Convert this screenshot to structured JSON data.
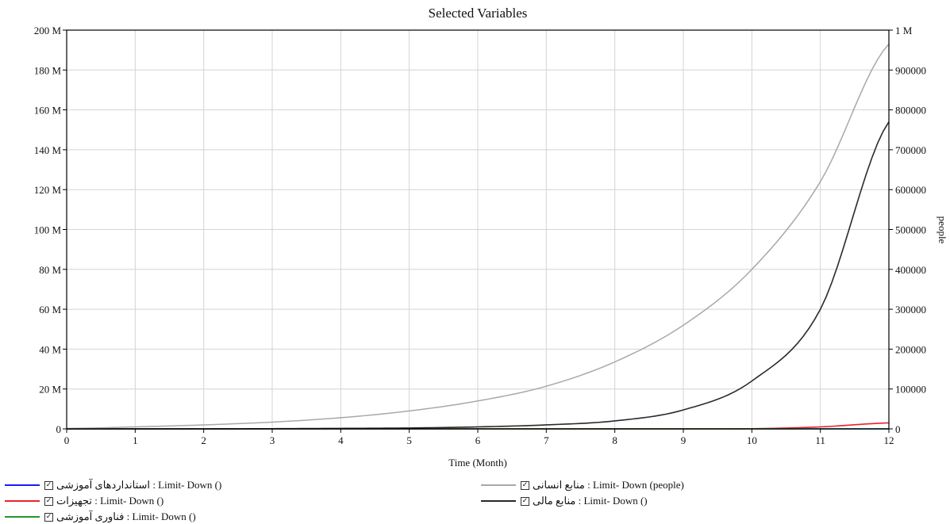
{
  "chart_data": {
    "type": "line",
    "title": "Selected Variables",
    "xlabel": "Time (Month)",
    "ylabel_left": "",
    "ylabel_right": "people",
    "x": [
      0,
      1,
      2,
      3,
      4,
      5,
      6,
      7,
      8,
      9,
      10,
      11,
      12
    ],
    "xlim": [
      0,
      12
    ],
    "ylim_left": [
      0,
      200000000
    ],
    "ylim_right": [
      0,
      1000000
    ],
    "x_ticks": [
      "0",
      "1",
      "2",
      "3",
      "4",
      "5",
      "6",
      "7",
      "8",
      "9",
      "10",
      "11",
      "12"
    ],
    "y_ticks_left": [
      "0",
      "20 M",
      "40 M",
      "60 M",
      "80 M",
      "100 M",
      "120 M",
      "140 M",
      "160 M",
      "180 M",
      "200 M"
    ],
    "y_ticks_right": [
      "0",
      "100000",
      "200000",
      "300000",
      "400000",
      "500000",
      "600000",
      "700000",
      "800000",
      "900000",
      "1 M"
    ],
    "grid": true,
    "series": [
      {
        "name": "Limit- Down () : استانداردهای آموزشی",
        "color": "#1a1aff",
        "axis": "left",
        "values": [
          0,
          0,
          0,
          0,
          0,
          0,
          0,
          0,
          0,
          0,
          0,
          0,
          0
        ]
      },
      {
        "name": "Limit- Down () : تجهیزات",
        "color": "#e8242b",
        "axis": "left",
        "values": [
          0,
          0,
          0,
          0,
          0,
          0,
          0,
          0,
          0,
          0,
          100000,
          1000000,
          3000000
        ]
      },
      {
        "name": "Limit- Down () : فناوری آموزشی",
        "color": "#1e9a2e",
        "axis": "left",
        "values": [
          0,
          0,
          0,
          0,
          0,
          0,
          0,
          0,
          0,
          0,
          0,
          0,
          0
        ]
      },
      {
        "name": "Limit- Down (people) : منابع انسانی",
        "color": "#a8a8a8",
        "axis": "right",
        "values": [
          1000,
          5000,
          10000,
          17000,
          28000,
          45000,
          70000,
          107000,
          168000,
          260000,
          400000,
          620000,
          965000
        ]
      },
      {
        "name": "Limit- Down () : منابع مالی",
        "color": "#2a2a2a",
        "axis": "left",
        "values": [
          0,
          0,
          0,
          100000,
          250000,
          450000,
          1000000,
          2000000,
          4000000,
          9500000,
          24000000,
          60000000,
          154000000
        ]
      }
    ],
    "legend": [
      {
        "label": "استانداردهای آموزشی : Limit- Down ()",
        "color": "#1a1aff",
        "checked": true
      },
      {
        "label": "تجهیزات : Limit- Down ()",
        "color": "#e8242b",
        "checked": true
      },
      {
        "label": "فناوری آموزشی : Limit- Down ()",
        "color": "#1e9a2e",
        "checked": true
      },
      {
        "label": "منابع انسانی : Limit- Down (people)",
        "color": "#a8a8a8",
        "checked": true
      },
      {
        "label": "منابع مالی : Limit- Down ()",
        "color": "#2a2a2a",
        "checked": true
      }
    ],
    "legend_placement": "bottom"
  }
}
